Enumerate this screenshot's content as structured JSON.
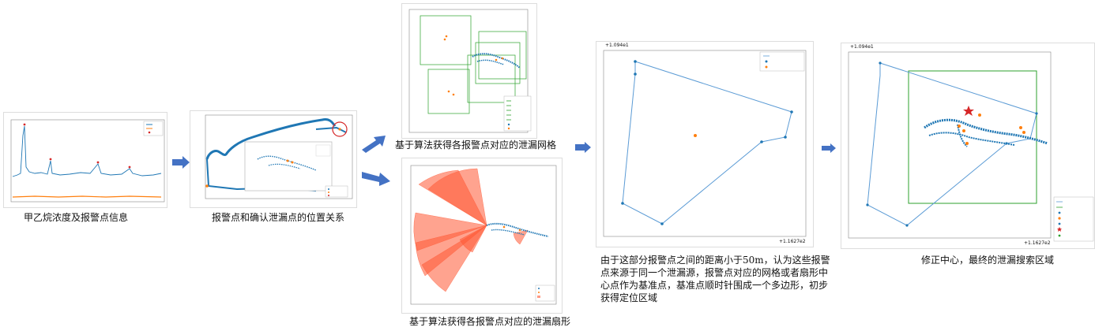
{
  "captions": {
    "stage1": "甲乙烷浓度及报警点信息",
    "stage2": "报警点和确认泄漏点的位置关系",
    "stage3a": "基于算法获得各报警点对应的泄漏网格",
    "stage3b": "基于算法获得各报警点对应的泄漏扇形",
    "stage4_line1": "由于这部分报警点之间的距离小于50m，认为这些报警",
    "stage4_line2": "点来源于同一个泄漏源，报警点对应的网格或者扇形中",
    "stage4_line3": "心点作为基准点，基准点顺时针围成一个多边形，初步",
    "stage4_line4": "获得定位区域",
    "stage5": "修正中心，最终的泄漏搜索区域"
  },
  "plot_headers": {
    "stage4_y_offset": "+1.094e1",
    "stage4_x_offset": "+1.1627e2",
    "stage5_y_offset": "+1.094e1",
    "stage5_x_offset": "+1.1627e2"
  },
  "colors": {
    "arrow": "#4472c4",
    "track": "#1f77b4",
    "alarm": "#ff7f0e",
    "grid": "#2ca02c",
    "fan": "#ff5733",
    "confirmed": "#d62728",
    "polygon": "#5b9bd5"
  }
}
